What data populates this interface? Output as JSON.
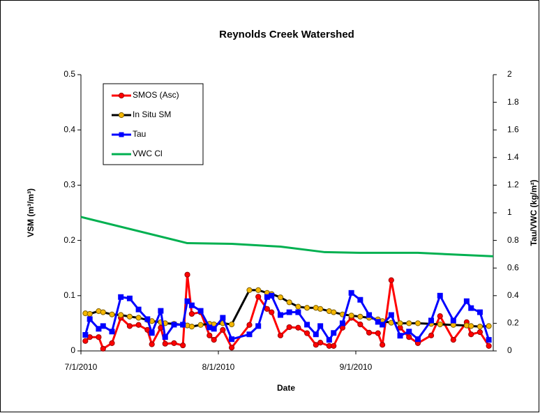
{
  "chart_data": {
    "type": "line",
    "title": "Reynolds Creek Watershed",
    "xlabel": "Date",
    "ylabel": "VSM (m³/m³)",
    "y2label": "Tau/VWC (kg/m²)",
    "x": [
      "2010-07-02",
      "2010-07-03",
      "2010-07-05",
      "2010-07-06",
      "2010-07-08",
      "2010-07-10",
      "2010-07-12",
      "2010-07-14",
      "2010-07-16",
      "2010-07-17",
      "2010-07-19",
      "2010-07-20",
      "2010-07-22",
      "2010-07-24",
      "2010-07-25",
      "2010-07-26",
      "2010-07-28",
      "2010-07-30",
      "2010-07-31",
      "2010-08-02",
      "2010-08-04",
      "2010-08-08",
      "2010-08-10",
      "2010-08-12",
      "2010-08-13",
      "2010-08-15",
      "2010-08-17",
      "2010-08-19",
      "2010-08-21",
      "2010-08-23",
      "2010-08-24",
      "2010-08-26",
      "2010-08-27",
      "2010-08-29",
      "2010-08-31",
      "2010-09-02",
      "2010-09-04",
      "2010-09-06",
      "2010-09-07",
      "2010-09-09",
      "2010-09-11",
      "2010-09-13",
      "2010-09-15",
      "2010-09-18",
      "2010-09-20",
      "2010-09-23",
      "2010-09-26",
      "2010-09-27",
      "2010-09-29",
      "2010-10-01"
    ],
    "series": [
      {
        "name": "SMOS (Asc)",
        "color": "#ff0000",
        "marker": "circle",
        "marker_color": "#ff0000",
        "marker_edge": "#990000",
        "axis": "y",
        "values": [
          0.018,
          0.025,
          0.025,
          0.004,
          0.014,
          0.06,
          0.045,
          0.047,
          0.038,
          0.012,
          0.042,
          0.013,
          0.014,
          0.01,
          0.138,
          0.067,
          0.07,
          0.028,
          0.02,
          0.038,
          0.006,
          0.047,
          0.098,
          0.076,
          0.07,
          0.028,
          0.043,
          0.042,
          0.032,
          0.011,
          0.015,
          0.009,
          0.009,
          0.042,
          0.06,
          0.048,
          0.033,
          0.032,
          0.011,
          0.128,
          0.042,
          0.025,
          0.014,
          0.028,
          0.063,
          0.02,
          0.052,
          0.03,
          0.034,
          0.009
        ]
      },
      {
        "name": "In Situ SM",
        "color": "#000000",
        "marker": "circle",
        "marker_color": "#f5b800",
        "marker_edge": "#806000",
        "axis": "y",
        "values": [
          0.068,
          0.067,
          0.072,
          0.07,
          0.066,
          0.065,
          0.062,
          0.06,
          0.056,
          0.054,
          0.052,
          0.05,
          0.049,
          0.047,
          0.046,
          0.044,
          0.047,
          0.049,
          0.048,
          0.05,
          0.048,
          0.11,
          0.11,
          0.105,
          0.103,
          0.097,
          0.088,
          0.08,
          0.078,
          0.078,
          0.076,
          0.072,
          0.07,
          0.066,
          0.064,
          0.062,
          0.06,
          0.057,
          0.054,
          0.051,
          0.05,
          0.05,
          0.05,
          0.049,
          0.048,
          0.047,
          0.046,
          0.045,
          0.044,
          0.045
        ]
      },
      {
        "name": "Tau",
        "color": "#0000ff",
        "marker": "square",
        "marker_color": "#0000ff",
        "marker_edge": "#0000ff",
        "axis": "y2",
        "values": [
          0.116,
          0.23,
          0.16,
          0.18,
          0.14,
          0.39,
          0.38,
          0.3,
          0.23,
          0.13,
          0.29,
          0.1,
          0.19,
          0.19,
          0.36,
          0.33,
          0.29,
          0.17,
          0.16,
          0.24,
          0.085,
          0.12,
          0.18,
          0.39,
          0.4,
          0.26,
          0.28,
          0.28,
          0.19,
          0.12,
          0.18,
          0.08,
          0.13,
          0.2,
          0.42,
          0.37,
          0.26,
          0.21,
          0.19,
          0.26,
          0.11,
          0.14,
          0.085,
          0.22,
          0.4,
          0.22,
          0.36,
          0.31,
          0.28,
          0.08
        ]
      },
      {
        "name": "VWC Cl",
        "color": "#00b050",
        "marker": "none",
        "axis": "y2",
        "x": [
          "2010-07-01",
          "2010-07-25",
          "2010-08-04",
          "2010-08-15",
          "2010-08-25",
          "2010-09-02",
          "2010-09-15",
          "2010-09-25",
          "2010-10-02"
        ],
        "values": [
          0.97,
          0.78,
          0.775,
          0.755,
          0.715,
          0.71,
          0.71,
          0.695,
          0.685
        ]
      }
    ],
    "xlim": [
      "2010-07-01",
      "2010-10-02"
    ],
    "xticks": [
      {
        "value": "2010-07-01",
        "label": "7/1/2010"
      },
      {
        "value": "2010-08-01",
        "label": "8/1/2010"
      },
      {
        "value": "2010-09-01",
        "label": "9/1/2010"
      }
    ],
    "ylim": [
      0,
      0.5
    ],
    "yticks": [
      0,
      0.1,
      0.2,
      0.3,
      0.4,
      0.5
    ],
    "y2lim": [
      0,
      2
    ],
    "y2ticks": [
      0,
      0.2,
      0.4,
      0.6,
      0.8,
      1,
      1.2,
      1.4,
      1.6,
      1.8,
      2
    ],
    "grid": false,
    "legend": "upper left"
  }
}
